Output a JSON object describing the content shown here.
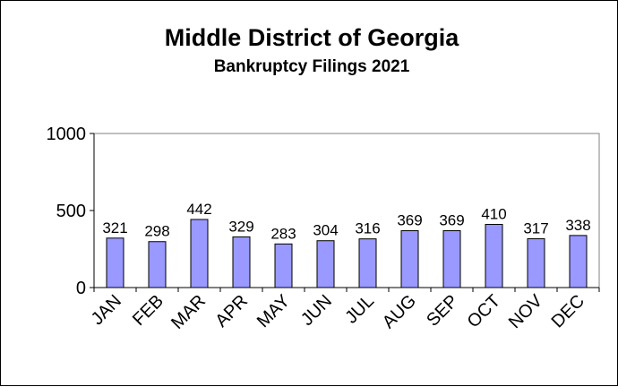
{
  "chart_data": {
    "type": "bar",
    "title": "Middle District of Georgia",
    "subtitle": "Bankruptcy  Filings 2021",
    "categories": [
      "JAN",
      "FEB",
      "MAR",
      "APR",
      "MAY",
      "JUN",
      "JUL",
      "AUG",
      "SEP",
      "OCT",
      "NOV",
      "DEC"
    ],
    "values": [
      321,
      298,
      442,
      329,
      283,
      304,
      316,
      369,
      369,
      410,
      317,
      338
    ],
    "ylim": [
      0,
      1000
    ],
    "yticks": [
      0,
      500,
      1000
    ],
    "grid": false,
    "legend": "none",
    "data_labels": true,
    "bar_color": "#9999ff",
    "bar_edge_color": "#000000"
  }
}
